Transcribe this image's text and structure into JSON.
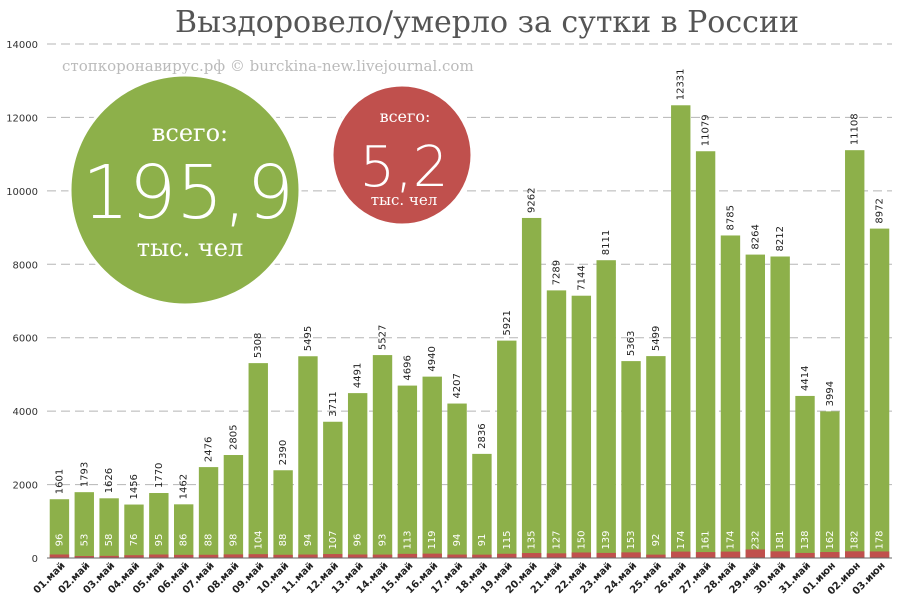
{
  "chart_data": {
    "type": "bar",
    "title": "Выздоровело/умерло за сутки в России",
    "watermark": "стопкоронавирус.рф © burckina-new.livejournal.com",
    "ylim": [
      0,
      14000
    ],
    "yticks": [
      0,
      2000,
      4000,
      6000,
      8000,
      10000,
      12000,
      14000
    ],
    "grid": true,
    "categories": [
      "01.май",
      "02.май",
      "03.май",
      "04.май",
      "05.май",
      "06.май",
      "07.май",
      "08.май",
      "09.май",
      "10.май",
      "11.май",
      "12.май",
      "13.май",
      "14.май",
      "15.май",
      "16.май",
      "17.май",
      "18.май",
      "19.май",
      "20.май",
      "21.май",
      "22.май",
      "23.май",
      "24.май",
      "25.май",
      "26.май",
      "27.май",
      "28.май",
      "29.май",
      "30.май",
      "31.май",
      "01.июн",
      "02.июн",
      "03.июн"
    ],
    "series": [
      {
        "color": "#8db04a",
        "values": [
          1601,
          1793,
          1626,
          1456,
          1770,
          1462,
          2476,
          2805,
          5308,
          2390,
          5495,
          3711,
          4491,
          5527,
          4696,
          4940,
          4207,
          2836,
          5921,
          9262,
          7289,
          7144,
          8111,
          5363,
          5499,
          12331,
          11079,
          8785,
          8264,
          8212,
          4414,
          3994,
          11108,
          8972
        ]
      },
      {
        "color": "#c0504d",
        "values": [
          96,
          53,
          58,
          76,
          95,
          86,
          88,
          98,
          104,
          88,
          94,
          107,
          96,
          93,
          113,
          119,
          94,
          91,
          115,
          135,
          127,
          150,
          139,
          153,
          92,
          174,
          161,
          174,
          232,
          181,
          138,
          162,
          182,
          178
        ]
      }
    ],
    "annotations": [
      {
        "line1": "всего:",
        "value": "195,9",
        "line2": "тыс. чел",
        "color": "#8db04a"
      },
      {
        "line1": "всего:",
        "value": "5,2",
        "line2": "тыс. чел",
        "color": "#c0504d"
      }
    ]
  }
}
